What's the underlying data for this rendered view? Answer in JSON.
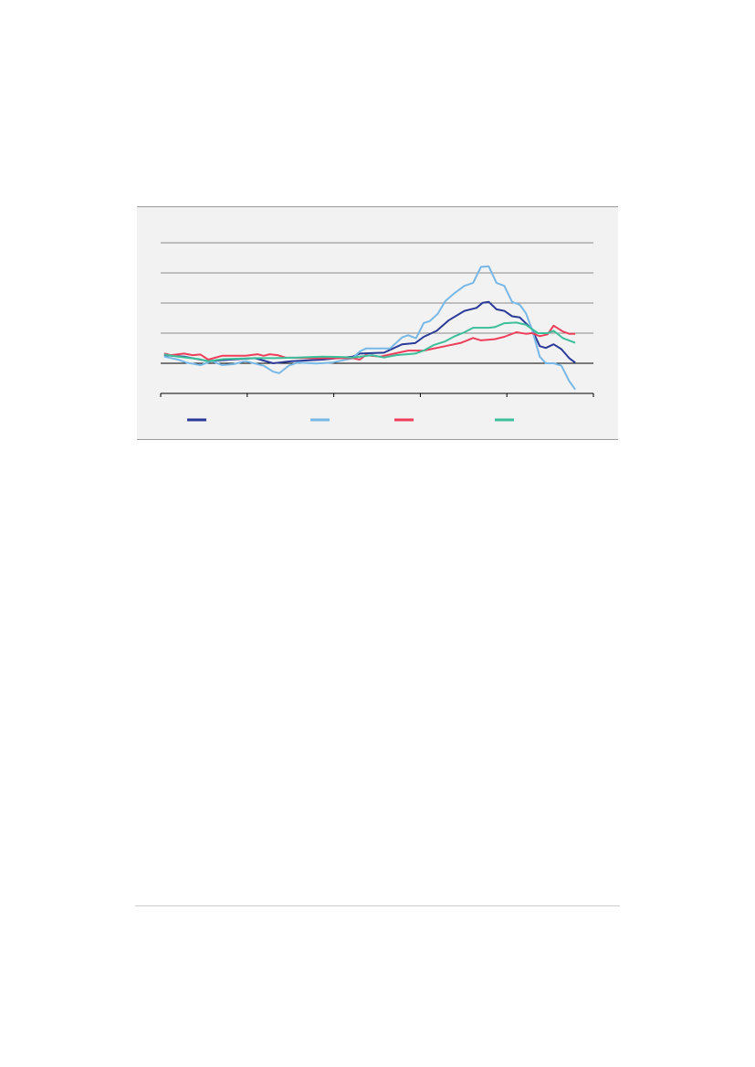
{
  "chart_data": {
    "type": "line",
    "title": "",
    "xlabel": "",
    "ylabel": "",
    "xlim": [
      0,
      5
    ],
    "ylim": [
      -1,
      4
    ],
    "grid": true,
    "legend_position": "bottom",
    "series": [
      {
        "color": "#2a3b98",
        "x": [
          0.04,
          0.27,
          0.55,
          0.8,
          1.09,
          1.3,
          1.51,
          1.87,
          2.22,
          2.3,
          2.58,
          2.79,
          2.94,
          3.04,
          3.19,
          3.33,
          3.51,
          3.65,
          3.72,
          3.79,
          3.88,
          3.97,
          4.06,
          4.15,
          4.29,
          4.38,
          4.45,
          4.54,
          4.63,
          4.72,
          4.79
        ],
        "y": [
          0.27,
          0.22,
          0.07,
          0.12,
          0.17,
          0,
          0.07,
          0.12,
          0.22,
          0.32,
          0.35,
          0.63,
          0.67,
          0.88,
          1.08,
          1.43,
          1.74,
          1.84,
          2.01,
          2.04,
          1.79,
          1.74,
          1.56,
          1.52,
          1.13,
          0.57,
          0.51,
          0.63,
          0.47,
          0.17,
          0.02
        ]
      },
      {
        "color": "#78b8e6",
        "x": [
          0.04,
          0.2,
          0.3,
          0.46,
          0.59,
          0.71,
          0.84,
          0.98,
          1.09,
          1.19,
          1.3,
          1.37,
          1.48,
          1.58,
          1.8,
          1.98,
          2.22,
          2.3,
          2.37,
          2.65,
          2.79,
          2.86,
          2.95,
          3.04,
          3.11,
          3.2,
          3.29,
          3.4,
          3.51,
          3.61,
          3.7,
          3.79,
          3.88,
          3.97,
          4.06,
          4.15,
          4.22,
          4.29,
          4.38,
          4.45,
          4.54,
          4.63,
          4.72,
          4.79
        ],
        "y": [
          0.22,
          0.12,
          0.02,
          -0.06,
          0.07,
          -0.06,
          -0.03,
          0.07,
          -0.01,
          -0.08,
          -0.28,
          -0.33,
          -0.08,
          0.02,
          -0.01,
          0.02,
          0.17,
          0.39,
          0.49,
          0.49,
          0.86,
          0.93,
          0.83,
          1.34,
          1.4,
          1.64,
          2.07,
          2.34,
          2.57,
          2.67,
          3.2,
          3.22,
          2.67,
          2.57,
          2.04,
          1.94,
          1.66,
          1.13,
          0.22,
          0,
          0,
          -0.08,
          -0.59,
          -0.87
        ]
      },
      {
        "color": "#ee3e5a",
        "x": [
          0.04,
          0.12,
          0.27,
          0.37,
          0.46,
          0.55,
          0.71,
          0.98,
          1.12,
          1.19,
          1.26,
          1.35,
          1.44,
          1.73,
          2.01,
          2.22,
          2.3,
          2.37,
          2.54,
          2.65,
          2.86,
          3.04,
          3.29,
          3.47,
          3.61,
          3.7,
          3.86,
          3.97,
          4.11,
          4.22,
          4.29,
          4.38,
          4.47,
          4.54,
          4.65,
          4.72,
          4.79
        ],
        "y": [
          0.32,
          0.27,
          0.32,
          0.27,
          0.29,
          0.12,
          0.25,
          0.25,
          0.3,
          0.25,
          0.3,
          0.27,
          0.19,
          0.17,
          0.17,
          0.17,
          0.12,
          0.27,
          0.22,
          0.29,
          0.42,
          0.42,
          0.57,
          0.68,
          0.84,
          0.76,
          0.8,
          0.88,
          1.03,
          0.98,
          1.0,
          0.9,
          0.96,
          1.25,
          1.05,
          0.98,
          0.98
        ]
      },
      {
        "color": "#3cbf9a",
        "x": [
          0.04,
          0.2,
          0.44,
          0.55,
          0.73,
          1.09,
          1.3,
          1.58,
          1.87,
          2.08,
          2.22,
          2.44,
          2.58,
          2.72,
          2.94,
          3.04,
          3.15,
          3.29,
          3.4,
          3.51,
          3.61,
          3.79,
          3.86,
          3.97,
          4.11,
          4.22,
          4.36,
          4.47,
          4.54,
          4.65,
          4.79
        ],
        "y": [
          0.29,
          0.22,
          0.14,
          0.07,
          0.14,
          0.17,
          0.17,
          0.19,
          0.22,
          0.21,
          0.19,
          0.27,
          0.19,
          0.27,
          0.32,
          0.42,
          0.6,
          0.73,
          0.9,
          1.03,
          1.18,
          1.18,
          1.2,
          1.33,
          1.35,
          1.28,
          1.0,
          1.0,
          1.08,
          0.83,
          0.68
        ]
      }
    ]
  }
}
